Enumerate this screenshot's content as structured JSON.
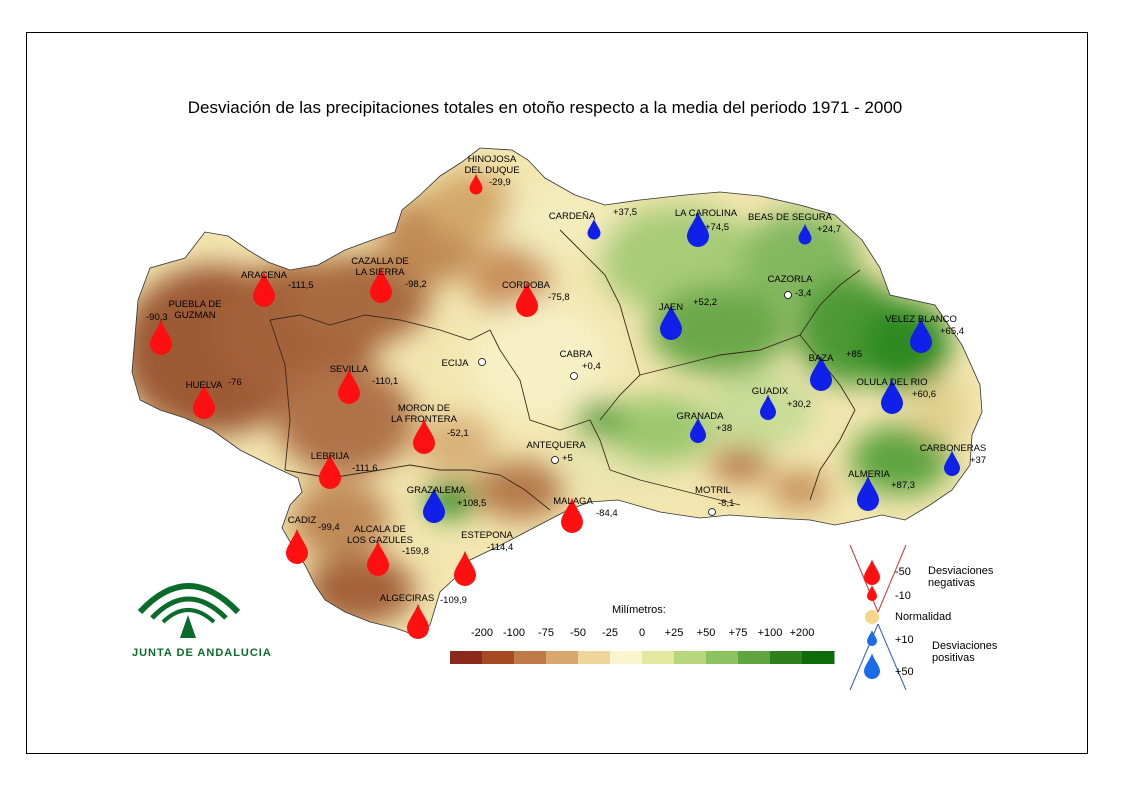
{
  "title": "Desviación de las precipitaciones totales en otoño respecto a la media del periodo 1971 - 2000",
  "logo": {
    "text": "JUNTA DE ANDALUCIA"
  },
  "scale": {
    "title": "Milímetros:",
    "labels": [
      "-200",
      "-100",
      "-75",
      "-50",
      "-25",
      "0",
      "+25",
      "+50",
      "+75",
      "+100",
      "+200"
    ],
    "colors": [
      "#8b2a1a",
      "#a64a24",
      "#bf7a4a",
      "#d9a86f",
      "#eed59a",
      "#fbf5cf",
      "#e2e89e",
      "#b8d67c",
      "#8cc25f",
      "#5ea43f",
      "#2f7f1c",
      "#0d6b0a"
    ]
  },
  "legend": {
    "negative_label": "Desviaciones negativas",
    "positive_label": "Desviaciones positivas",
    "normal_label": "Normalidad",
    "items": [
      "-50",
      "-10",
      "+10",
      "+50"
    ]
  },
  "stations": [
    {
      "name": "HINOJOSA DEL DUQUE",
      "value": "-29,9",
      "type": "neg",
      "size": "small"
    },
    {
      "name": "CARDEÑA",
      "value": "+37,5",
      "type": "pos",
      "size": "small"
    },
    {
      "name": "LA CAROLINA",
      "value": "+74,5",
      "type": "pos",
      "size": "large"
    },
    {
      "name": "BEAS DE SEGURA",
      "value": "+24,7",
      "type": "pos",
      "size": "small"
    },
    {
      "name": "ARACENA",
      "value": "-111,5",
      "type": "neg",
      "size": "large"
    },
    {
      "name": "CAZALLA DE LA SIERRA",
      "value": "-98,2",
      "type": "neg",
      "size": "large"
    },
    {
      "name": "CORDOBA",
      "value": "-75,8",
      "type": "neg",
      "size": "large"
    },
    {
      "name": "CAZORLA",
      "value": "-3,4",
      "type": "normal",
      "size": "normal"
    },
    {
      "name": "PUEBLA DE GUZMAN",
      "value": "-90,3",
      "type": "neg",
      "size": "large"
    },
    {
      "name": "JAEN",
      "value": "+52,2",
      "type": "pos",
      "size": "large"
    },
    {
      "name": "VELEZ BLANCO",
      "value": "+65,4",
      "type": "pos",
      "size": "large"
    },
    {
      "name": "ECIJA",
      "value": "",
      "type": "normal",
      "size": "normal"
    },
    {
      "name": "CABRA",
      "value": "+0,4",
      "type": "normal",
      "size": "normal"
    },
    {
      "name": "BAZA",
      "value": "+85",
      "type": "pos",
      "size": "large"
    },
    {
      "name": "SEVILLA",
      "value": "-110,1",
      "type": "neg",
      "size": "large"
    },
    {
      "name": "HUELVA",
      "value": "-76",
      "type": "neg",
      "size": "large"
    },
    {
      "name": "OLULA DEL RIO",
      "value": "+60,6",
      "type": "pos",
      "size": "large"
    },
    {
      "name": "GUADIX",
      "value": "+30,2",
      "type": "pos",
      "size": "medium"
    },
    {
      "name": "MORON DE LA FRONTERA",
      "value": "-52,1",
      "type": "neg",
      "size": "large"
    },
    {
      "name": "GRANADA",
      "value": "+38",
      "type": "pos",
      "size": "medium"
    },
    {
      "name": "CARBONERAS",
      "value": "+37",
      "type": "pos",
      "size": "medium"
    },
    {
      "name": "ANTEQUERA",
      "value": "+5",
      "type": "normal",
      "size": "normal"
    },
    {
      "name": "LEBRIJA",
      "value": "-111,6",
      "type": "neg",
      "size": "large"
    },
    {
      "name": "ALMERIA",
      "value": "+87,3",
      "type": "pos",
      "size": "large"
    },
    {
      "name": "GRAZALEMA",
      "value": "+108,5",
      "type": "pos",
      "size": "large"
    },
    {
      "name": "MOTRIL",
      "value": "-8,1",
      "type": "normal",
      "size": "normal"
    },
    {
      "name": "MALAGA",
      "value": "-84,4",
      "type": "neg",
      "size": "large"
    },
    {
      "name": "CADIZ",
      "value": "-99,4",
      "type": "neg",
      "size": "large"
    },
    {
      "name": "ALCALA DE LOS GAZULES",
      "value": "-159,8",
      "type": "neg",
      "size": "large"
    },
    {
      "name": "ESTEPONA",
      "value": "-114,4",
      "type": "neg",
      "size": "large"
    },
    {
      "name": "ALGECIRAS",
      "value": "-109,9",
      "type": "neg",
      "size": "large"
    }
  ]
}
